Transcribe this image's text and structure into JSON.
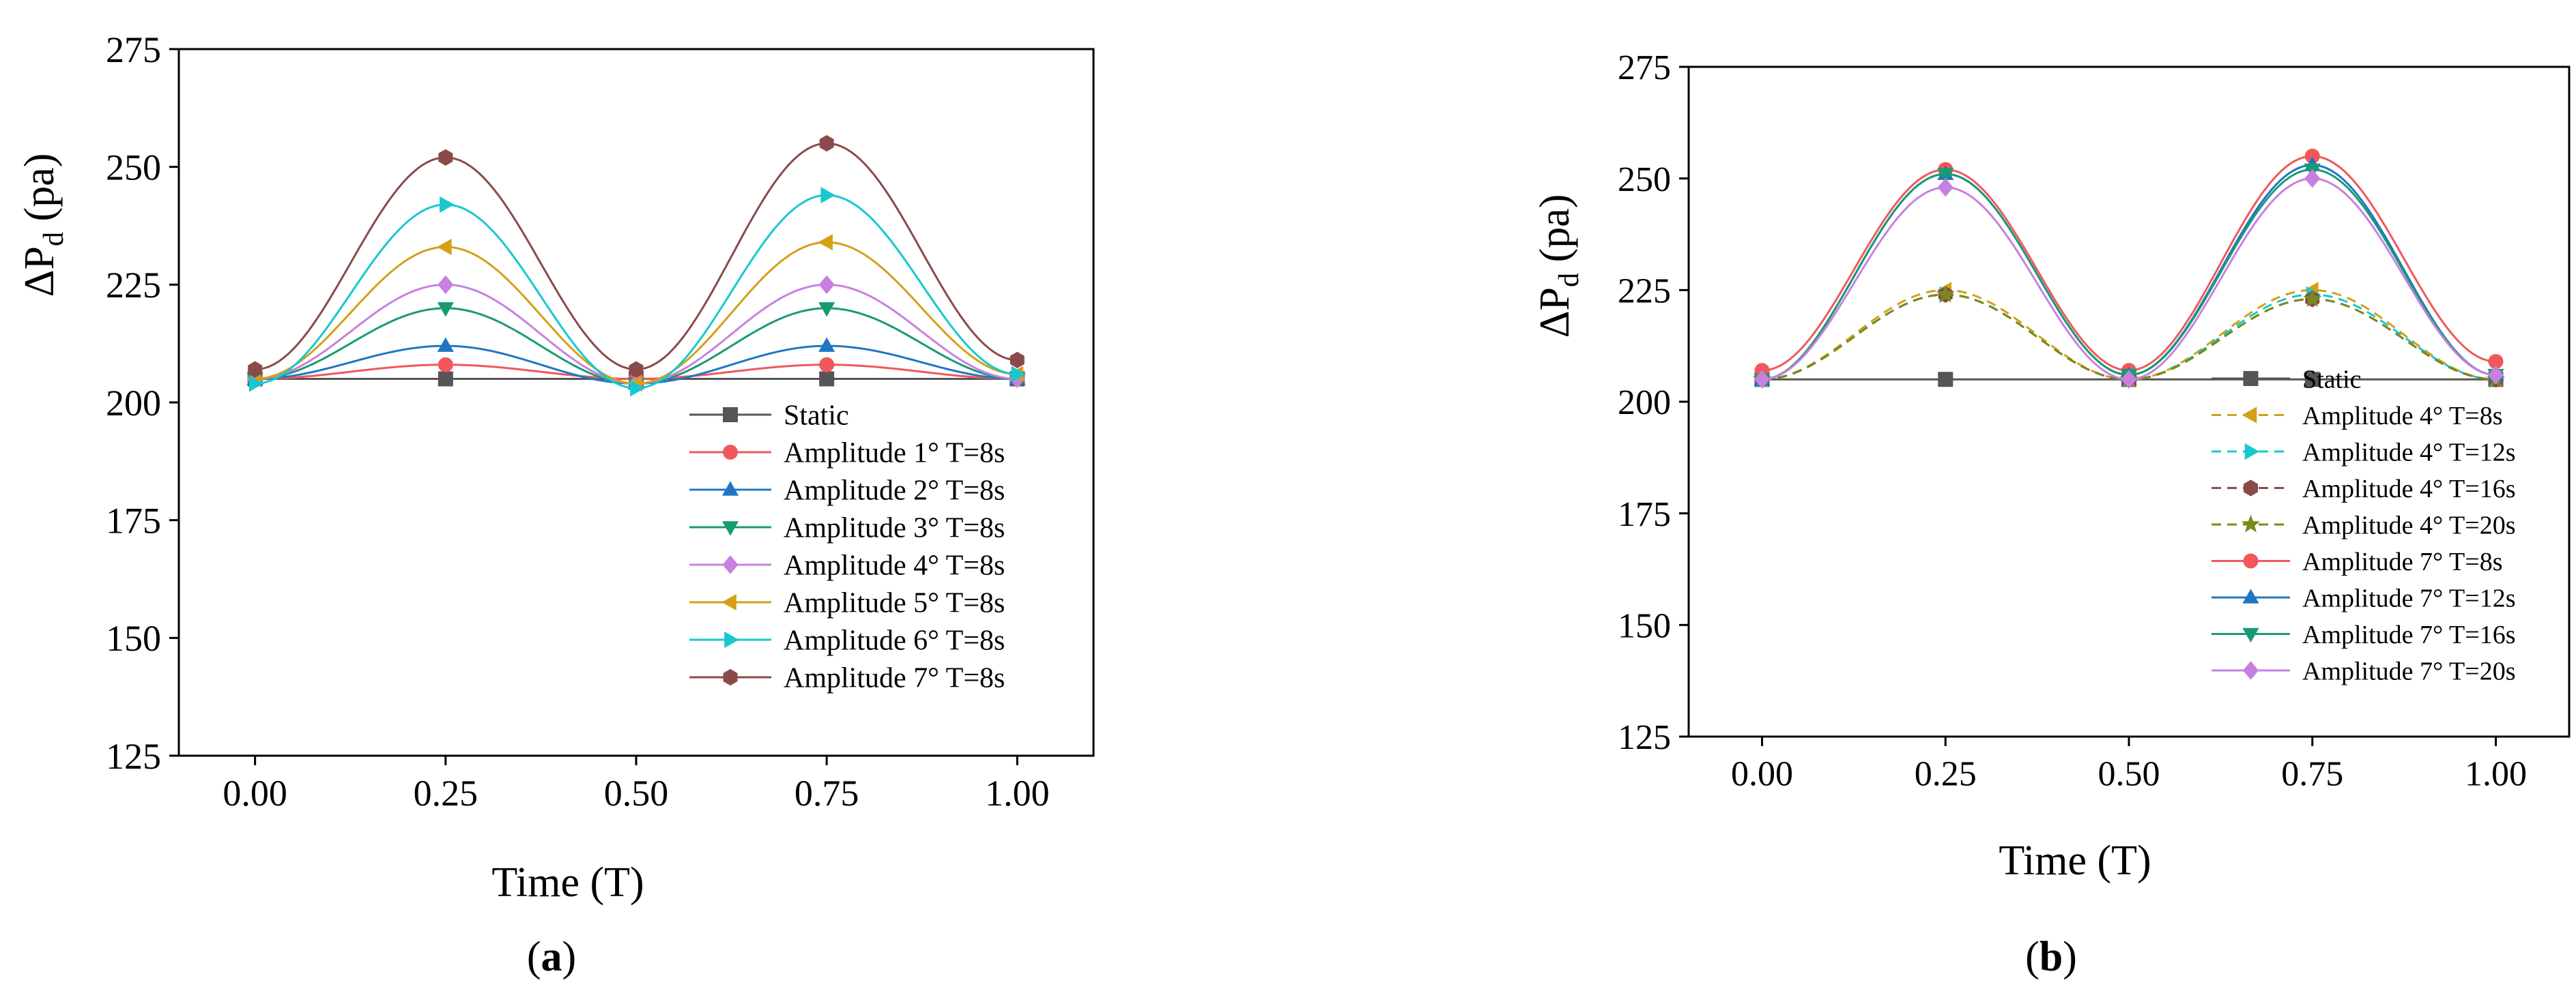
{
  "chart_data": [
    {
      "type": "line",
      "panel_label": "(a)",
      "panel_letter": "a",
      "xlabel": "Time (T)",
      "ylabel_main": "ΔP",
      "ylabel_sub": "d",
      "ylabel_unit": " (pa)",
      "xlim": [
        -0.1,
        1.1
      ],
      "ylim": [
        125,
        275
      ],
      "xticks": [
        "0.00",
        "0.25",
        "0.50",
        "0.75",
        "1.00"
      ],
      "xtick_values": [
        0,
        0.25,
        0.5,
        0.75,
        1.0
      ],
      "yticks": [
        "125",
        "150",
        "175",
        "200",
        "225",
        "250",
        "275"
      ],
      "ytick_values": [
        125,
        150,
        175,
        200,
        225,
        250,
        275
      ],
      "legend_position": "bottom-right",
      "x": [
        0,
        0.25,
        0.5,
        0.75,
        1.0
      ],
      "series": [
        {
          "name": "Static",
          "color": "#555555",
          "marker": "square",
          "dash": false,
          "values": [
            205,
            205,
            205,
            205,
            205
          ]
        },
        {
          "name": "Amplitude 1° T=8s",
          "color": "#f0585c",
          "marker": "circle",
          "dash": false,
          "values": [
            205,
            208,
            205,
            208,
            205
          ]
        },
        {
          "name": "Amplitude 2° T=8s",
          "color": "#1f77c4",
          "marker": "triangle-up",
          "dash": false,
          "values": [
            205,
            212,
            204,
            212,
            205
          ]
        },
        {
          "name": "Amplitude 3° T=8s",
          "color": "#1a9a74",
          "marker": "triangle-down",
          "dash": false,
          "values": [
            205,
            220,
            204,
            220,
            205
          ]
        },
        {
          "name": "Amplitude 4° T=8s",
          "color": "#c880e0",
          "marker": "diamond",
          "dash": false,
          "values": [
            205,
            225,
            204,
            225,
            205
          ]
        },
        {
          "name": "Amplitude 5° T=8s",
          "color": "#d4a017",
          "marker": "triangle-left",
          "dash": false,
          "values": [
            205,
            233,
            204,
            234,
            206
          ]
        },
        {
          "name": "Amplitude 6° T=8s",
          "color": "#18c8d0",
          "marker": "triangle-right",
          "dash": false,
          "values": [
            204,
            242,
            203,
            244,
            206
          ]
        },
        {
          "name": "Amplitude 7° T=8s",
          "color": "#8b4a4a",
          "marker": "hexagon",
          "dash": false,
          "values": [
            207,
            252,
            207,
            255,
            209
          ]
        }
      ]
    },
    {
      "type": "line",
      "panel_label": "(b)",
      "panel_letter": "b",
      "xlabel": "Time (T)",
      "ylabel_main": "ΔP",
      "ylabel_sub": "d",
      "ylabel_unit": " (pa)",
      "xlim": [
        -0.1,
        1.1
      ],
      "ylim": [
        125,
        275
      ],
      "xticks": [
        "0.00",
        "0.25",
        "0.50",
        "0.75",
        "1.00"
      ],
      "xtick_values": [
        0,
        0.25,
        0.5,
        0.75,
        1.0
      ],
      "yticks": [
        "125",
        "150",
        "175",
        "200",
        "225",
        "250",
        "275"
      ],
      "ytick_values": [
        125,
        150,
        175,
        200,
        225,
        250,
        275
      ],
      "legend_position": "bottom-right",
      "x": [
        0,
        0.25,
        0.5,
        0.75,
        1.0
      ],
      "series": [
        {
          "name": "Static",
          "color": "#555555",
          "marker": "square",
          "dash": false,
          "values": [
            205,
            205,
            205,
            205,
            205
          ]
        },
        {
          "name": "Amplitude 4° T=8s",
          "color": "#d4a017",
          "marker": "triangle-left",
          "dash": true,
          "values": [
            205,
            225,
            205,
            225,
            205
          ]
        },
        {
          "name": "Amplitude 4° T=12s",
          "color": "#18c8d0",
          "marker": "triangle-right",
          "dash": true,
          "values": [
            205,
            224,
            205,
            224,
            205
          ]
        },
        {
          "name": "Amplitude 4° T=16s",
          "color": "#8b4a4a",
          "marker": "hexagon",
          "dash": true,
          "values": [
            205,
            224,
            205,
            223,
            205
          ]
        },
        {
          "name": "Amplitude 4° T=20s",
          "color": "#7a8a1a",
          "marker": "star",
          "dash": true,
          "values": [
            205,
            224,
            205,
            223,
            205
          ]
        },
        {
          "name": "Amplitude 7° T=8s",
          "color": "#f0585c",
          "marker": "circle",
          "dash": false,
          "values": [
            207,
            252,
            207,
            255,
            209
          ]
        },
        {
          "name": "Amplitude 7° T=12s",
          "color": "#1f77c4",
          "marker": "triangle-up",
          "dash": false,
          "values": [
            205,
            251,
            206,
            253,
            206
          ]
        },
        {
          "name": "Amplitude 7° T=16s",
          "color": "#1a9a74",
          "marker": "triangle-down",
          "dash": false,
          "values": [
            205,
            251,
            206,
            252,
            206
          ]
        },
        {
          "name": "Amplitude 7° T=20s",
          "color": "#c880e0",
          "marker": "diamond",
          "dash": false,
          "values": [
            205,
            248,
            205,
            250,
            206
          ]
        }
      ]
    }
  ]
}
